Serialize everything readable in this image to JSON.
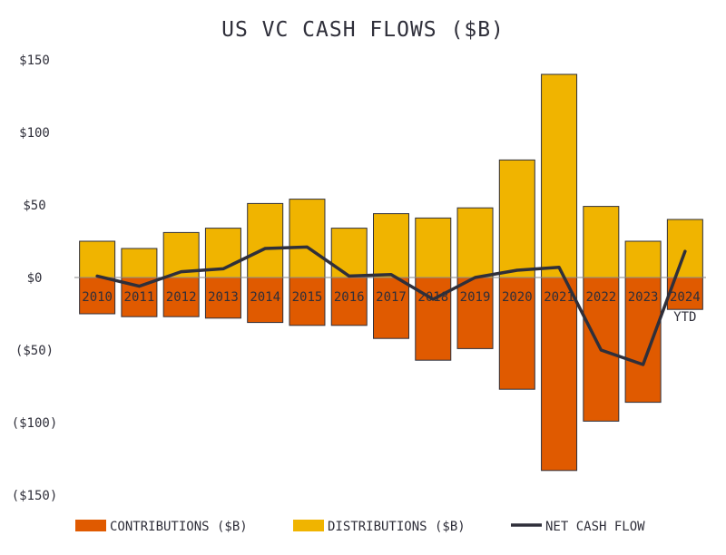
{
  "chart_data": {
    "type": "bar",
    "title": "US VC CASH FLOWS ($B)",
    "xlabel": "",
    "ylabel": "",
    "ylim": [
      -150,
      150
    ],
    "yticks": [
      150,
      100,
      50,
      0,
      -50,
      -100,
      -150
    ],
    "ytick_labels": [
      "$150",
      "$100",
      "$50",
      "$0",
      "($50)",
      "($100)",
      "($150)"
    ],
    "categories": [
      "2010",
      "2011",
      "2012",
      "2013",
      "2014",
      "2015",
      "2016",
      "2017",
      "2018",
      "2019",
      "2020",
      "2021",
      "2022",
      "2023",
      "2024"
    ],
    "category_sublabels": [
      "",
      "",
      "",
      "",
      "",
      "",
      "",
      "",
      "",
      "",
      "",
      "",
      "",
      "",
      "YTD"
    ],
    "grid": false,
    "legend_position": "bottom",
    "series": [
      {
        "name": "CONTRIBUTIONS ($B)",
        "type": "bar",
        "color": "#e05a00",
        "values": [
          -25,
          -27,
          -27,
          -28,
          -31,
          -33,
          -33,
          -42,
          -57,
          -49,
          -77,
          -133,
          -99,
          -86,
          -22
        ]
      },
      {
        "name": "DISTRIBUTIONS ($B)",
        "type": "bar",
        "color": "#f0b400",
        "values": [
          25,
          20,
          31,
          34,
          51,
          54,
          34,
          44,
          41,
          48,
          81,
          140,
          49,
          25,
          40
        ]
      },
      {
        "name": "NET CASH FLOW",
        "type": "line",
        "color": "#2f2f3a",
        "values": [
          1,
          -6,
          4,
          6,
          20,
          21,
          1,
          2,
          -15,
          0,
          5,
          7,
          -50,
          -60,
          18
        ]
      }
    ]
  }
}
